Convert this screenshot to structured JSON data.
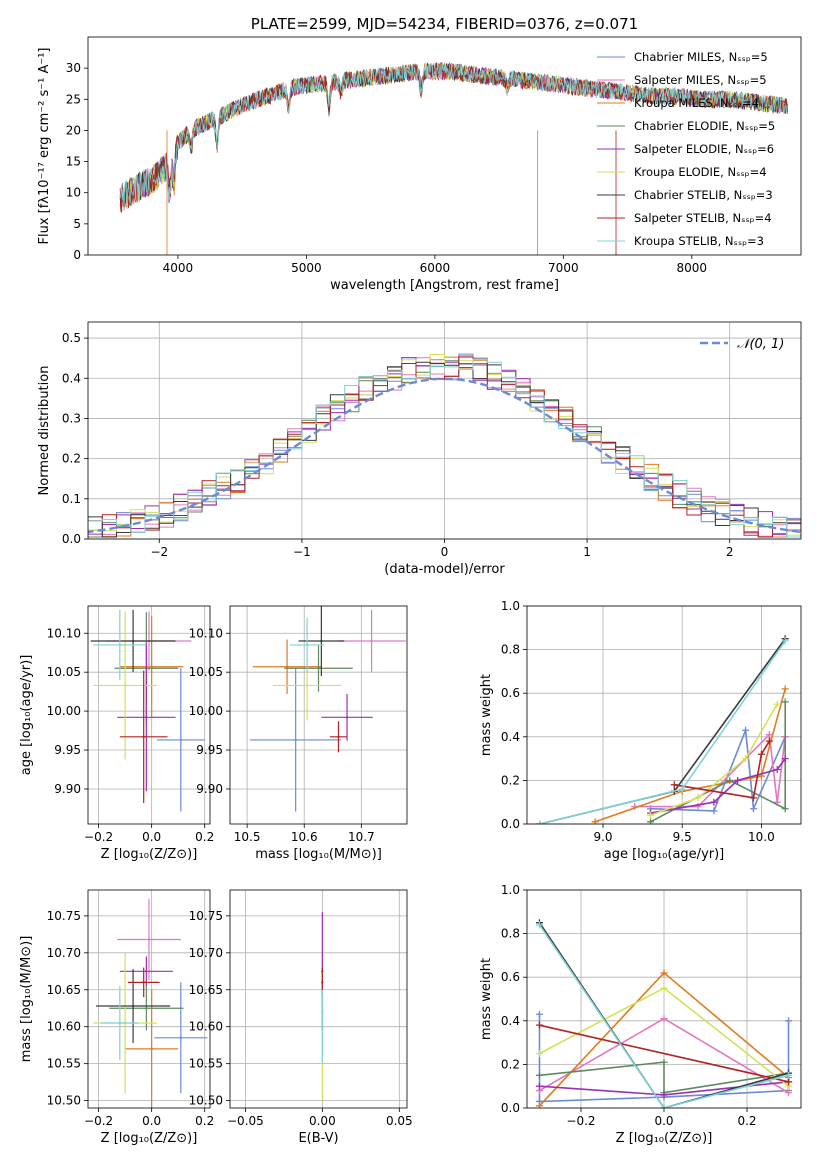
{
  "chart_data": [
    {
      "id": "spectrum",
      "type": "line",
      "title": "PLATE=2599, MJD=54234, FIBERID=0376, z=0.071",
      "xlabel": "wavelength [Angstrom, rest frame]",
      "ylabel": "Flux [fλ10⁻¹⁷ erg cm⁻² s⁻¹ A⁻¹]",
      "xlim": [
        3300,
        8850
      ],
      "ylim": [
        0,
        35
      ],
      "xticks": [
        4000,
        5000,
        6000,
        7000,
        8000
      ],
      "yticks": [
        0,
        5,
        10,
        15,
        20,
        25,
        30
      ],
      "grid": false,
      "legend_position": "top-right",
      "series": [
        {
          "name": "Chabrier MILES, Nₛₛₚ=5",
          "color": "#6b8bd6"
        },
        {
          "name": "Salpeter MILES, Nₛₛₚ=5",
          "color": "#e377c2"
        },
        {
          "name": "Kroupa MILES, Nₛₛₚ=4",
          "color": "#e07b20"
        },
        {
          "name": "Chabrier ELODIE, Nₛₛₚ=5",
          "color": "#5f8a5f"
        },
        {
          "name": "Salpeter ELODIE, Nₛₛₚ=6",
          "color": "#9b30b5"
        },
        {
          "name": "Kroupa ELODIE, Nₛₛₚ=4",
          "color": "#d4e157"
        },
        {
          "name": "Chabrier STELIB, Nₛₛₚ=3",
          "color": "#3a3a3a"
        },
        {
          "name": "Salpeter STELIB, Nₛₛₚ=4",
          "color": "#b22222"
        },
        {
          "name": "Kroupa STELIB, Nₛₛₚ=3",
          "color": "#7fd3d8"
        }
      ],
      "continuum": {
        "x": [
          3550,
          3700,
          3800,
          3900,
          4000,
          4100,
          4200,
          4300,
          4400,
          4500,
          4700,
          4900,
          5100,
          5300,
          5500,
          5700,
          5900,
          6100,
          6300,
          6500,
          6700,
          6900,
          7100,
          7300,
          7500,
          7700,
          7900,
          8100,
          8300,
          8500,
          8700
        ],
        "y": [
          9,
          11,
          12,
          14,
          18,
          20,
          21,
          22,
          23,
          24,
          25.5,
          27,
          27.5,
          28,
          28.5,
          29,
          29.5,
          29.5,
          29,
          28.5,
          28,
          27.5,
          27,
          26.5,
          26,
          25.5,
          25.5,
          25,
          25,
          24.5,
          24
        ]
      }
    },
    {
      "id": "residuals",
      "type": "histogram",
      "xlabel": "(data-model)/error",
      "ylabel": "Normed distribution",
      "xlim": [
        -2.5,
        2.5
      ],
      "ylim": [
        0,
        0.54
      ],
      "xticks": [
        -2,
        -1,
        0,
        1,
        2
      ],
      "yticks": [
        0.0,
        0.1,
        0.2,
        0.3,
        0.4,
        0.5
      ],
      "grid": true,
      "legend_position": "top-right",
      "reference_curve": {
        "name": "𝒩(0, 1)",
        "color": "#6b8bd6",
        "style": "dashed"
      },
      "bin_width": 0.1
    },
    {
      "id": "age-vs-Z",
      "type": "errorbar",
      "xlabel": "Z [log₁₀(Z/Z⊙)]",
      "ylabel": "age  [log₁₀(age/yr)]",
      "xlim": [
        -0.24,
        0.22
      ],
      "ylim": [
        9.855,
        10.135
      ],
      "xticks": [
        -0.2,
        0.0,
        0.2
      ],
      "yticks": [
        9.9,
        9.95,
        10.0,
        10.05,
        10.1
      ],
      "grid": true,
      "points": [
        {
          "x": 0.11,
          "y": 9.963,
          "xerr": 0.09,
          "yerr": 0.092,
          "color": "#6b8bd6"
        },
        {
          "x": -0.01,
          "y": 10.09,
          "xerr": 0.16,
          "yerr": 0.038,
          "color": "#e377c2"
        },
        {
          "x": 0.0,
          "y": 10.057,
          "xerr": 0.12,
          "yerr": 0.065,
          "color": "#e07b20"
        },
        {
          "x": -0.02,
          "y": 10.055,
          "xerr": 0.12,
          "yerr": 0.072,
          "color": "#5f8a5f"
        },
        {
          "x": -0.02,
          "y": 9.992,
          "xerr": 0.11,
          "yerr": 0.095,
          "color": "#9b30b5"
        },
        {
          "x": -0.1,
          "y": 10.033,
          "xerr": 0.12,
          "yerr": 0.095,
          "color": "#d4e157"
        },
        {
          "x": -0.07,
          "y": 10.09,
          "xerr": 0.16,
          "yerr": 0.04,
          "color": "#3a3a3a"
        },
        {
          "x": -0.03,
          "y": 9.967,
          "xerr": 0.09,
          "yerr": 0.085,
          "color": "#b22222"
        },
        {
          "x": -0.12,
          "y": 10.085,
          "xerr": 0.1,
          "yerr": 0.045,
          "color": "#7fd3d8"
        }
      ]
    },
    {
      "id": "age-vs-mass",
      "type": "errorbar",
      "xlabel": "mass [log₁₀(M/M⊙)]",
      "ylabel": "",
      "xlim": [
        10.47,
        10.78
      ],
      "ylim": [
        9.855,
        10.135
      ],
      "xticks": [
        10.5,
        10.6,
        10.7
      ],
      "yticks": [
        9.9,
        9.95,
        10.0,
        10.05,
        10.1
      ],
      "grid": true,
      "points": [
        {
          "x": 10.585,
          "y": 9.963,
          "xerr": 0.08,
          "yerr": 0.092,
          "color": "#6b8bd6"
        },
        {
          "x": 10.718,
          "y": 10.09,
          "xerr": 0.06,
          "yerr": 0.04,
          "color": "#e377c2"
        },
        {
          "x": 10.57,
          "y": 10.057,
          "xerr": 0.06,
          "yerr": 0.035,
          "color": "#e07b20"
        },
        {
          "x": 10.625,
          "y": 10.055,
          "xerr": 0.06,
          "yerr": 0.03,
          "color": "#5f8a5f"
        },
        {
          "x": 10.675,
          "y": 9.992,
          "xerr": 0.045,
          "yerr": 0.03,
          "color": "#9b30b5"
        },
        {
          "x": 10.605,
          "y": 10.033,
          "xerr": 0.06,
          "yerr": 0.045,
          "color": "#d4e157"
        },
        {
          "x": 10.63,
          "y": 10.09,
          "xerr": 0.04,
          "yerr": 0.045,
          "color": "#3a3a3a"
        },
        {
          "x": 10.66,
          "y": 9.967,
          "xerr": 0.015,
          "yerr": 0.02,
          "color": "#b22222"
        },
        {
          "x": 10.605,
          "y": 10.085,
          "xerr": 0.03,
          "yerr": 0.035,
          "color": "#7fd3d8"
        }
      ]
    },
    {
      "id": "mass-weight-vs-age",
      "type": "line",
      "xlabel": "age  [log₁₀(age/yr)]",
      "ylabel": "mass weight",
      "xlim": [
        8.52,
        10.25
      ],
      "ylim": [
        0,
        1.0
      ],
      "xticks": [
        9.0,
        9.5,
        10.0
      ],
      "yticks": [
        0.0,
        0.2,
        0.4,
        0.6,
        0.8,
        1.0
      ],
      "grid": true,
      "series": [
        {
          "color": "#6b8bd6",
          "x": [
            9.3,
            9.7,
            9.9,
            9.95,
            10.15
          ],
          "y": [
            0.07,
            0.06,
            0.43,
            0.07,
            0.4
          ]
        },
        {
          "color": "#e377c2",
          "x": [
            9.2,
            9.6,
            10.05,
            10.1,
            10.15
          ],
          "y": [
            0.08,
            0.08,
            0.41,
            0.1,
            0.4
          ]
        },
        {
          "color": "#e07b20",
          "x": [
            8.95,
            9.5,
            10.0,
            10.15
          ],
          "y": [
            0.01,
            0.15,
            0.22,
            0.62
          ]
        },
        {
          "color": "#5f8a5f",
          "x": [
            9.3,
            9.8,
            10.15,
            10.15
          ],
          "y": [
            0.01,
            0.2,
            0.07,
            0.56
          ]
        },
        {
          "color": "#9b30b5",
          "x": [
            9.3,
            9.7,
            9.85,
            10.1,
            10.15
          ],
          "y": [
            0.05,
            0.1,
            0.2,
            0.25,
            0.3
          ]
        },
        {
          "color": "#d4e157",
          "x": [
            9.3,
            9.6,
            9.9,
            10.1
          ],
          "y": [
            0.04,
            0.12,
            0.3,
            0.55
          ]
        },
        {
          "color": "#3a3a3a",
          "x": [
            8.6,
            9.45,
            10.15
          ],
          "y": [
            0.0,
            0.15,
            0.85
          ]
        },
        {
          "color": "#b22222",
          "x": [
            9.45,
            9.95,
            10.0,
            10.05
          ],
          "y": [
            0.18,
            0.12,
            0.32,
            0.38
          ]
        },
        {
          "color": "#7fd3d8",
          "x": [
            8.6,
            9.5,
            10.15
          ],
          "y": [
            0.0,
            0.16,
            0.84
          ]
        }
      ]
    },
    {
      "id": "mass-vs-Z",
      "type": "errorbar",
      "xlabel": "Z [log₁₀(Z/Z⊙)]",
      "ylabel": "mass [log₁₀(M/M⊙)]",
      "xlim": [
        -0.24,
        0.22
      ],
      "ylim": [
        10.49,
        10.785
      ],
      "xticks": [
        -0.2,
        0.0,
        0.2
      ],
      "yticks": [
        10.5,
        10.55,
        10.6,
        10.65,
        10.7,
        10.75
      ],
      "grid": true,
      "points": [
        {
          "x": 0.11,
          "y": 10.585,
          "xerr": 0.1,
          "yerr": 0.075,
          "color": "#6b8bd6"
        },
        {
          "x": -0.01,
          "y": 10.718,
          "xerr": 0.12,
          "yerr": 0.055,
          "color": "#e377c2"
        },
        {
          "x": 0.0,
          "y": 10.57,
          "xerr": 0.1,
          "yerr": 0.08,
          "color": "#e07b20"
        },
        {
          "x": -0.02,
          "y": 10.625,
          "xerr": 0.14,
          "yerr": 0.03,
          "color": "#5f8a5f"
        },
        {
          "x": -0.02,
          "y": 10.675,
          "xerr": 0.1,
          "yerr": 0.02,
          "color": "#9b30b5"
        },
        {
          "x": -0.1,
          "y": 10.605,
          "xerr": 0.12,
          "yerr": 0.095,
          "color": "#d4e157"
        },
        {
          "x": -0.07,
          "y": 10.628,
          "xerr": 0.14,
          "yerr": 0.05,
          "color": "#3a3a3a"
        },
        {
          "x": -0.03,
          "y": 10.66,
          "xerr": 0.06,
          "yerr": 0.02,
          "color": "#b22222"
        },
        {
          "x": -0.12,
          "y": 10.605,
          "xerr": 0.07,
          "yerr": 0.05,
          "color": "#7fd3d8"
        }
      ]
    },
    {
      "id": "mass-vs-EBV",
      "type": "errorbar",
      "xlabel": "E(B-V)",
      "ylabel": "",
      "xlim": [
        -0.06,
        0.055
      ],
      "ylim": [
        10.49,
        10.785
      ],
      "xticks": [
        -0.05,
        0.0,
        0.05
      ],
      "yticks": [
        10.5,
        10.55,
        10.6,
        10.65,
        10.7,
        10.75
      ],
      "grid": true,
      "points": [
        {
          "x": 0.0,
          "y": 10.62,
          "xerr": 0.0,
          "yerr": 0.12,
          "color": "#d4e157"
        },
        {
          "x": 0.0,
          "y": 10.675,
          "xerr": 0.0,
          "yerr": 0.08,
          "color": "#9b30b5"
        },
        {
          "x": 0.0,
          "y": 10.66,
          "xerr": 0.0,
          "yerr": 0.02,
          "color": "#b22222"
        },
        {
          "x": 0.0,
          "y": 10.6,
          "xerr": 0.0,
          "yerr": 0.05,
          "color": "#7fd3d8"
        }
      ]
    },
    {
      "id": "mass-weight-vs-Z",
      "type": "line",
      "xlabel": "Z [log₁₀(Z/Z⊙)]",
      "ylabel": "mass weight",
      "xlim": [
        -0.33,
        0.33
      ],
      "ylim": [
        0,
        1.0
      ],
      "xticks": [
        -0.2,
        0.0,
        0.2
      ],
      "yticks": [
        0.0,
        0.2,
        0.4,
        0.6,
        0.8,
        1.0
      ],
      "grid": true,
      "series": [
        {
          "color": "#6b8bd6",
          "x": [
            -0.3,
            -0.3,
            0.0,
            0.3,
            0.3
          ],
          "y": [
            0.43,
            0.03,
            0.05,
            0.08,
            0.4
          ]
        },
        {
          "color": "#e377c2",
          "x": [
            -0.3,
            0.0,
            0.3
          ],
          "y": [
            0.08,
            0.41,
            0.07
          ]
        },
        {
          "color": "#e07b20",
          "x": [
            -0.3,
            0.0,
            0.3
          ],
          "y": [
            0.01,
            0.62,
            0.14
          ]
        },
        {
          "color": "#5f8a5f",
          "x": [
            -0.3,
            0.0,
            0.0,
            0.3
          ],
          "y": [
            0.15,
            0.21,
            0.07,
            0.16
          ]
        },
        {
          "color": "#9b30b5",
          "x": [
            -0.3,
            0.0,
            0.3
          ],
          "y": [
            0.1,
            0.06,
            0.12
          ]
        },
        {
          "color": "#d4e157",
          "x": [
            -0.3,
            0.0,
            0.3
          ],
          "y": [
            0.25,
            0.55,
            0.1
          ]
        },
        {
          "color": "#3a3a3a",
          "x": [
            -0.3,
            0.0,
            0.3
          ],
          "y": [
            0.85,
            0.0,
            0.16
          ]
        },
        {
          "color": "#b22222",
          "x": [
            -0.3,
            0.3
          ],
          "y": [
            0.38,
            0.12
          ]
        },
        {
          "color": "#7fd3d8",
          "x": [
            -0.3,
            0.0,
            0.3
          ],
          "y": [
            0.84,
            0.0,
            0.15
          ]
        }
      ]
    }
  ]
}
